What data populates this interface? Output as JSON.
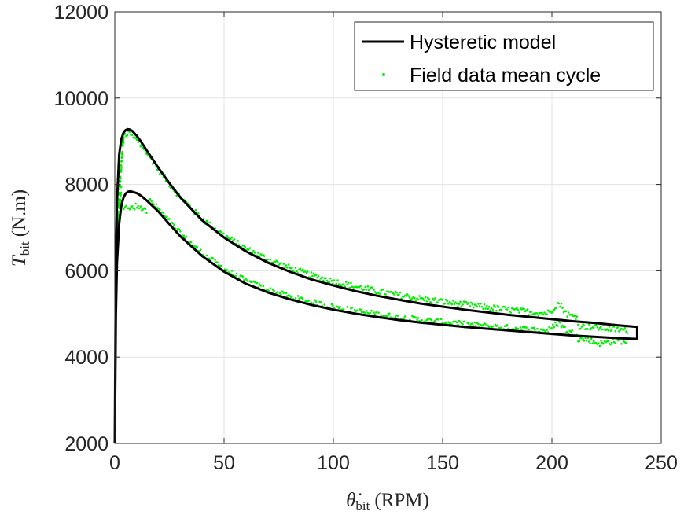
{
  "chart_data": {
    "type": "line",
    "xlim": [
      0,
      250
    ],
    "ylim": [
      2000,
      12000
    ],
    "xticks": [
      0,
      50,
      100,
      150,
      200,
      250
    ],
    "yticks": [
      2000,
      4000,
      6000,
      8000,
      10000,
      12000
    ],
    "x_tick_labels": [
      "0",
      "50",
      "100",
      "150",
      "200",
      "250"
    ],
    "y_tick_labels": [
      "2000",
      "4000",
      "6000",
      "8000",
      "10000",
      "12000"
    ],
    "xlabel_symbol": "θ̇",
    "xlabel_sub": "bit",
    "xlabel_unit": "(RPM)",
    "ylabel_symbol": "T",
    "ylabel_sub": "bit",
    "ylabel_unit": "(N.m)",
    "grid": true,
    "legend_position": "top-right",
    "series": [
      {
        "name": "Hysteretic model",
        "style": "line",
        "color": "#000000",
        "upper_branch": {
          "x": [
            0,
            0.5,
            1,
            2,
            3,
            4,
            5,
            6,
            7,
            8,
            10,
            12,
            15,
            20,
            25,
            30,
            40,
            50,
            60,
            70,
            80,
            90,
            100,
            110,
            120,
            130,
            140,
            150,
            160,
            170,
            180,
            190,
            200,
            210,
            220,
            230,
            239
          ],
          "y": [
            2000,
            6200,
            7600,
            8700,
            9050,
            9200,
            9260,
            9280,
            9270,
            9240,
            9130,
            8990,
            8760,
            8380,
            8030,
            7700,
            7170,
            6770,
            6450,
            6190,
            5980,
            5800,
            5660,
            5530,
            5420,
            5330,
            5240,
            5170,
            5100,
            5040,
            4980,
            4930,
            4880,
            4830,
            4790,
            4740,
            4700
          ]
        },
        "lower_branch": {
          "x": [
            239,
            230,
            220,
            210,
            200,
            190,
            180,
            170,
            160,
            150,
            140,
            130,
            120,
            110,
            100,
            90,
            80,
            70,
            60,
            50,
            40,
            30,
            25,
            20,
            15,
            12,
            10,
            8,
            7,
            6,
            5,
            4,
            3,
            2,
            1,
            0.5,
            0
          ],
          "y": [
            4420,
            4440,
            4470,
            4500,
            4540,
            4580,
            4620,
            4660,
            4700,
            4750,
            4800,
            4860,
            4930,
            5010,
            5100,
            5210,
            5340,
            5500,
            5700,
            5980,
            6340,
            6800,
            7080,
            7370,
            7610,
            7740,
            7800,
            7830,
            7840,
            7830,
            7790,
            7700,
            7500,
            7100,
            6200,
            5000,
            2000
          ]
        }
      },
      {
        "name": "Field data mean cycle",
        "style": "markers",
        "color": "#00ee00"
      }
    ]
  }
}
